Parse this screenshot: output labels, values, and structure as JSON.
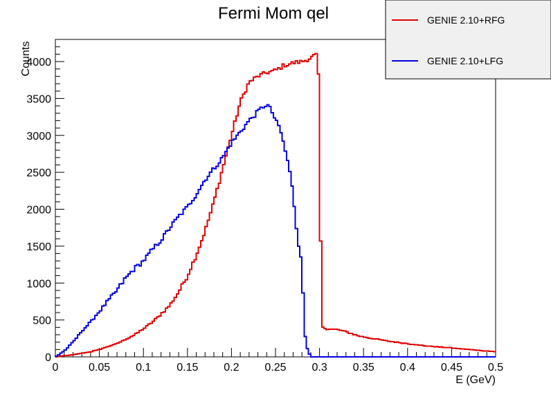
{
  "chart_data": {
    "type": "line",
    "title": "Fermi Mom qel",
    "xlabel": "E (GeV)",
    "ylabel": "Counts",
    "xlim": [
      0,
      0.5
    ],
    "ylim": [
      0,
      4300
    ],
    "x_ticks": [
      "0",
      "0.05",
      "0.1",
      "0.15",
      "0.2",
      "0.25",
      "0.3",
      "0.35",
      "0.4",
      "0.45",
      "0.5"
    ],
    "y_ticks": [
      "0",
      "500",
      "1000",
      "1500",
      "2000",
      "2500",
      "3000",
      "3500",
      "4000"
    ],
    "legend_position": "top-right",
    "histogram_bin_width": 0.0025,
    "series": [
      {
        "name": "GENIE 2.10+RFG",
        "color": "#e00000",
        "x": [
          0,
          0.01,
          0.02,
          0.03,
          0.04,
          0.05,
          0.06,
          0.07,
          0.08,
          0.09,
          0.1,
          0.11,
          0.12,
          0.13,
          0.14,
          0.15,
          0.16,
          0.17,
          0.18,
          0.19,
          0.2,
          0.21,
          0.22,
          0.23,
          0.24,
          0.25,
          0.26,
          0.27,
          0.28,
          0.29,
          0.2975,
          0.3,
          0.302,
          0.31,
          0.32,
          0.33,
          0.34,
          0.35,
          0.36,
          0.37,
          0.38,
          0.39,
          0.4,
          0.41,
          0.42,
          0.43,
          0.44,
          0.45,
          0.46,
          0.47,
          0.48,
          0.49,
          0.5
        ],
        "y": [
          0,
          15,
          30,
          50,
          70,
          100,
          140,
          180,
          240,
          300,
          380,
          470,
          580,
          700,
          880,
          1100,
          1380,
          1700,
          2100,
          2550,
          3000,
          3450,
          3720,
          3800,
          3850,
          3880,
          3950,
          3980,
          4000,
          4050,
          4100,
          3500,
          400,
          380,
          370,
          340,
          300,
          270,
          250,
          230,
          210,
          195,
          180,
          165,
          150,
          140,
          130,
          120,
          110,
          100,
          90,
          80,
          70
        ]
      },
      {
        "name": "GENIE 2.10+LFG",
        "color": "#0000e0",
        "x": [
          0,
          0.01,
          0.02,
          0.03,
          0.04,
          0.05,
          0.06,
          0.07,
          0.08,
          0.09,
          0.1,
          0.11,
          0.12,
          0.13,
          0.14,
          0.15,
          0.16,
          0.17,
          0.18,
          0.19,
          0.2,
          0.21,
          0.22,
          0.23,
          0.235,
          0.24,
          0.245,
          0.25,
          0.255,
          0.26,
          0.265,
          0.27,
          0.275,
          0.28,
          0.2825,
          0.285,
          0.29,
          0.3,
          0.5
        ],
        "y": [
          0,
          80,
          200,
          350,
          470,
          620,
          760,
          900,
          1070,
          1200,
          1300,
          1450,
          1580,
          1750,
          1900,
          2030,
          2200,
          2400,
          2550,
          2700,
          2900,
          3050,
          3200,
          3320,
          3380,
          3420,
          3350,
          3200,
          3100,
          2850,
          2600,
          2200,
          1600,
          1300,
          400,
          150,
          0,
          0,
          0
        ]
      }
    ]
  }
}
